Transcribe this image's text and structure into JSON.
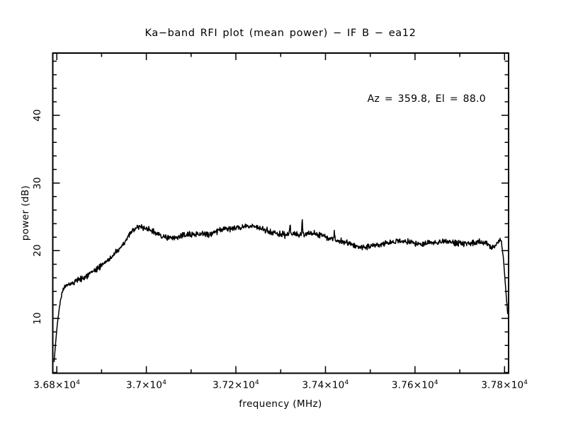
{
  "title": "Ka−band RFI plot (mean power) − IF B − ea12",
  "annotation": "Az = 359.8, El = 88.0",
  "colors": {
    "foreground": "#000000",
    "background": "#ffffff"
  },
  "chart_data": {
    "type": "line",
    "title": "Ka−band RFI plot (mean power) − IF B − ea12",
    "xlabel": "frequency (MHz)",
    "ylabel": "power (dB)",
    "xlim": [
      36791,
      37809
    ],
    "ylim": [
      1.9,
      49.2
    ],
    "grid": false,
    "legend": "none",
    "x_major_ticks": [
      {
        "value": 36800,
        "label": "3.68×10^4"
      },
      {
        "value": 37000,
        "label": "3.7×10^4"
      },
      {
        "value": 37200,
        "label": "3.72×10^4"
      },
      {
        "value": 37400,
        "label": "3.74×10^4"
      },
      {
        "value": 37600,
        "label": "3.76×10^4"
      },
      {
        "value": 37800,
        "label": "3.78×10^4"
      }
    ],
    "x_minor_step": 100,
    "y_major_ticks": [
      {
        "value": 10,
        "label": "10"
      },
      {
        "value": 20,
        "label": "20"
      },
      {
        "value": 30,
        "label": "30"
      },
      {
        "value": 40,
        "label": "40"
      }
    ],
    "y_minor_step": 2,
    "line_color": "#000000",
    "noise_db": 0.27,
    "noise_seed": 42,
    "spikes": [
      {
        "freq": 37321,
        "amp": 1.6,
        "width": 1.2
      },
      {
        "freq": 37348,
        "amp": 2.0,
        "width": 1.2
      },
      {
        "freq": 37420,
        "amp": 1.1,
        "width": 1.0
      }
    ],
    "series": [
      {
        "name": "mean power",
        "points": [
          [
            36794,
            3.6
          ],
          [
            36800,
            8.5
          ],
          [
            36806,
            11.8
          ],
          [
            36812,
            13.9
          ],
          [
            36820,
            14.8
          ],
          [
            36832,
            15.2
          ],
          [
            36850,
            15.7
          ],
          [
            36865,
            16.2
          ],
          [
            36880,
            16.8
          ],
          [
            36895,
            17.6
          ],
          [
            36910,
            18.4
          ],
          [
            36925,
            19.2
          ],
          [
            36940,
            20.2
          ],
          [
            36955,
            21.6
          ],
          [
            36966,
            22.7
          ],
          [
            36976,
            23.4
          ],
          [
            36988,
            23.5
          ],
          [
            37000,
            23.3
          ],
          [
            37015,
            22.8
          ],
          [
            37035,
            22.1
          ],
          [
            37055,
            21.8
          ],
          [
            37075,
            22.1
          ],
          [
            37095,
            22.4
          ],
          [
            37115,
            22.5
          ],
          [
            37135,
            22.4
          ],
          [
            37155,
            22.8
          ],
          [
            37175,
            23.3
          ],
          [
            37195,
            23.3
          ],
          [
            37215,
            23.5
          ],
          [
            37232,
            23.7
          ],
          [
            37250,
            23.4
          ],
          [
            37268,
            23.0
          ],
          [
            37288,
            22.6
          ],
          [
            37305,
            22.4
          ],
          [
            37320,
            22.4
          ],
          [
            37340,
            22.5
          ],
          [
            37358,
            22.4
          ],
          [
            37378,
            22.5
          ],
          [
            37395,
            22.2
          ],
          [
            37412,
            21.8
          ],
          [
            37428,
            21.5
          ],
          [
            37445,
            21.2
          ],
          [
            37462,
            20.9
          ],
          [
            37478,
            20.5
          ],
          [
            37495,
            20.6
          ],
          [
            37512,
            20.8
          ],
          [
            37530,
            21.0
          ],
          [
            37548,
            21.2
          ],
          [
            37562,
            21.4
          ],
          [
            37580,
            21.3
          ],
          [
            37598,
            21.2
          ],
          [
            37615,
            20.9
          ],
          [
            37632,
            21.2
          ],
          [
            37650,
            21.2
          ],
          [
            37668,
            21.4
          ],
          [
            37685,
            21.2
          ],
          [
            37700,
            21.1
          ],
          [
            37715,
            21.1
          ],
          [
            37730,
            21.2
          ],
          [
            37745,
            21.2
          ],
          [
            37760,
            21.1
          ],
          [
            37770,
            20.4
          ],
          [
            37780,
            20.8
          ],
          [
            37789,
            21.5
          ],
          [
            37793,
            21.3
          ],
          [
            37798,
            18.5
          ],
          [
            37803,
            14.0
          ],
          [
            37807,
            10.7
          ]
        ]
      }
    ]
  }
}
